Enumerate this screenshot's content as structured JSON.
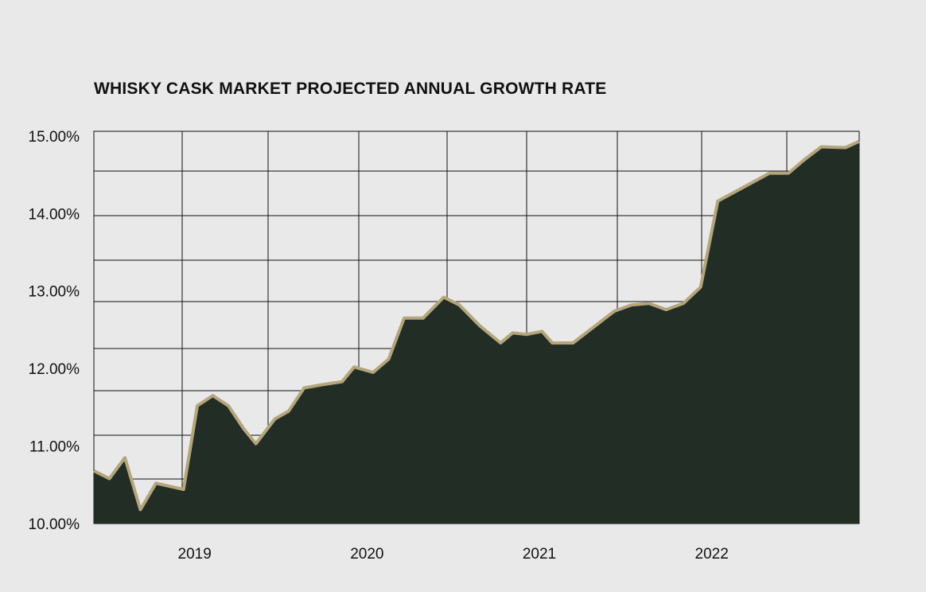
{
  "chart_data": {
    "type": "area",
    "title": "WHISKY CASK MARKET PROJECTED ANNUAL GROWTH RATE",
    "xlabel": "",
    "ylabel": "",
    "x_tick_labels": [
      "2019",
      "2020",
      "2021",
      "2022"
    ],
    "x_tick_values": [
      2019.0,
      2020.0,
      2021.0,
      2022.0
    ],
    "y_tick_labels": [
      "10.00%",
      "11.00%",
      "12.00%",
      "13.00%",
      "14.00%",
      "15.00%"
    ],
    "y_tick_values": [
      10,
      11,
      12,
      13,
      14,
      15
    ],
    "xlim": [
      2018.48,
      2022.92
    ],
    "ylim": [
      10.0,
      15.06
    ],
    "grid": true,
    "colors": {
      "fill": "#212d25",
      "line": "#b5a57c",
      "grid": "#111111",
      "background": "#e8e9e8"
    },
    "series": [
      {
        "x": [
          2018.48,
          2018.57,
          2018.66,
          2018.75,
          2018.84,
          2019.0,
          2019.08,
          2019.17,
          2019.26,
          2019.35,
          2019.42,
          2019.53,
          2019.61,
          2019.7,
          2019.8,
          2019.92,
          2019.99,
          2020.1,
          2020.19,
          2020.28,
          2020.39,
          2020.51,
          2020.6,
          2020.72,
          2020.84,
          2020.91,
          2020.99,
          2021.08,
          2021.14,
          2021.26,
          2021.5,
          2021.6,
          2021.7,
          2021.8,
          2021.9,
          2022.0,
          2022.1,
          2022.4,
          2022.51,
          2022.6,
          2022.7,
          2022.84,
          2022.92
        ],
        "y": [
          10.68,
          10.58,
          10.85,
          10.18,
          10.52,
          10.44,
          11.52,
          11.65,
          11.52,
          11.22,
          11.03,
          11.35,
          11.45,
          11.75,
          11.79,
          11.83,
          12.02,
          11.95,
          12.12,
          12.65,
          12.65,
          12.92,
          12.82,
          12.55,
          12.33,
          12.46,
          12.44,
          12.48,
          12.33,
          12.33,
          12.74,
          12.82,
          12.84,
          12.76,
          12.84,
          13.05,
          14.16,
          14.52,
          14.52,
          14.69,
          14.86,
          14.85,
          14.93
        ]
      }
    ]
  }
}
